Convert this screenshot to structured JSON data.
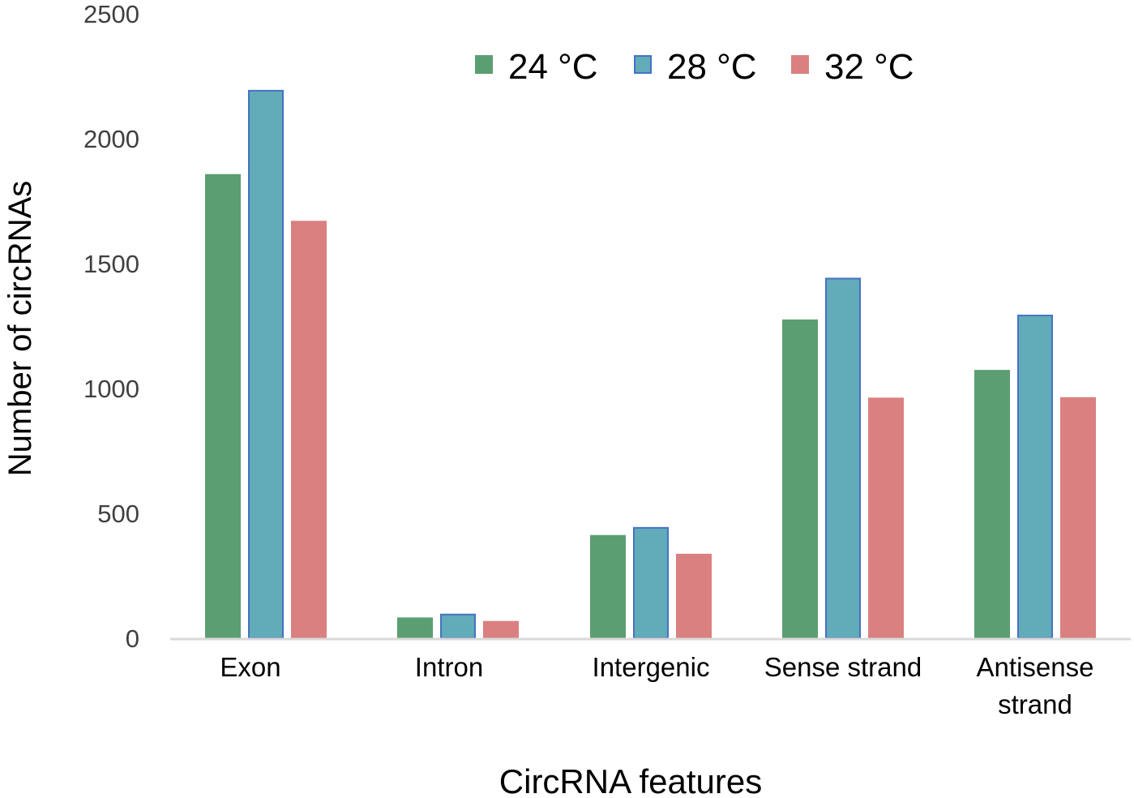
{
  "chart_data": {
    "type": "bar",
    "title": "",
    "xlabel": "CircRNA features",
    "ylabel": "Number of circRNAs",
    "ylim": [
      0,
      2500
    ],
    "yticks": [
      0,
      500,
      1000,
      1500,
      2000,
      2500
    ],
    "grid": false,
    "legend_position": "top-right",
    "categories": [
      "Exon",
      "Intron",
      "Intergenic",
      "Sense strand",
      "Antisense strand"
    ],
    "category_lines": [
      [
        "Exon"
      ],
      [
        "Intron"
      ],
      [
        "Intergenic"
      ],
      [
        "Sense strand"
      ],
      [
        "Antisense",
        "strand"
      ]
    ],
    "series": [
      {
        "name": "24 °C",
        "color": "#5b9e72",
        "border": "#5b9e72",
        "values": [
          1855,
          80,
          410,
          1273,
          1071
        ]
      },
      {
        "name": "28 °C",
        "color": "#62abb8",
        "border": "#4472c4",
        "values": [
          2192,
          95,
          442,
          1440,
          1292
        ]
      },
      {
        "name": "32 °C",
        "color": "#da8080",
        "border": "#da8080",
        "values": [
          1668,
          66,
          335,
          960,
          962
        ]
      }
    ]
  }
}
